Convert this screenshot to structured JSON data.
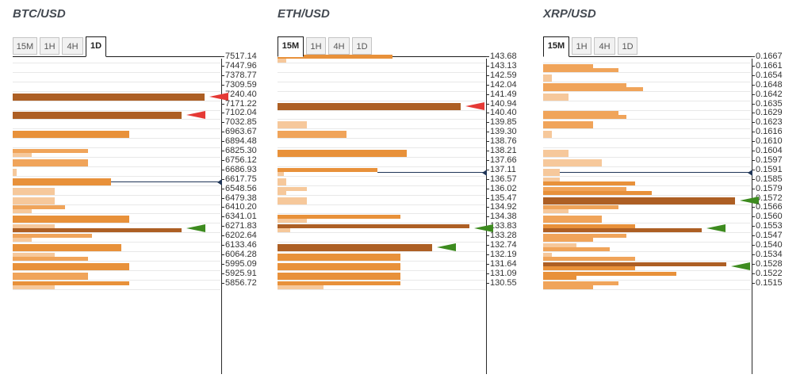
{
  "colors": {
    "bar_light": "#f6c89b",
    "bar_medium": "#f0a45a",
    "bar_orange": "#e8913a",
    "bar_dark": "#ad5f24",
    "arrow_resistance": "#e53935",
    "arrow_support": "#3d8b1f",
    "current_price_line": "#1f3557"
  },
  "panels": [
    {
      "title": "BTC/USD",
      "tabs": [
        {
          "label": "15M",
          "active": false
        },
        {
          "label": "1H",
          "active": false
        },
        {
          "label": "4H",
          "active": false
        },
        {
          "label": "1D",
          "active": true
        }
      ],
      "levels": [
        {
          "price": "7517.14",
          "bars": [],
          "arrow": null
        },
        {
          "price": "7447.96",
          "bars": [],
          "arrow": null
        },
        {
          "price": "7378.77",
          "bars": [],
          "arrow": null
        },
        {
          "price": "7309.59",
          "bars": [],
          "arrow": null
        },
        {
          "price": "7240.40",
          "bars": [
            {
              "level": 4,
              "strength": 0.92
            }
          ],
          "arrow": "red"
        },
        {
          "price": "7171.22",
          "bars": [],
          "arrow": null
        },
        {
          "price": "7102.04",
          "bars": [
            {
              "level": 4,
              "strength": 0.81
            }
          ],
          "arrow": "red"
        },
        {
          "price": "7032.85",
          "bars": [],
          "arrow": null
        },
        {
          "price": "6963.67",
          "bars": [
            {
              "level": 3,
              "strength": 0.56
            }
          ],
          "arrow": null
        },
        {
          "price": "6894.48",
          "bars": [],
          "arrow": null
        },
        {
          "price": "6825.30",
          "bars": [
            {
              "level": 2,
              "strength": 0.36
            },
            {
              "level": 1,
              "strength": 0.09
            }
          ],
          "arrow": null
        },
        {
          "price": "6756.12",
          "bars": [
            {
              "level": 2,
              "strength": 0.36
            }
          ],
          "arrow": null
        },
        {
          "price": "6686.93",
          "bars": [
            {
              "level": 1,
              "strength": 0.02
            }
          ],
          "arrow": null
        },
        {
          "price": "6617.75",
          "bars": [
            {
              "level": 3,
              "strength": 0.47
            }
          ],
          "arrow": null,
          "current": true
        },
        {
          "price": "6548.56",
          "bars": [
            {
              "level": 1,
              "strength": 0.2
            }
          ],
          "arrow": null
        },
        {
          "price": "6479.38",
          "bars": [
            {
              "level": 1,
              "strength": 0.2
            }
          ],
          "arrow": null
        },
        {
          "price": "6410.20",
          "bars": [
            {
              "level": 2,
              "strength": 0.25
            },
            {
              "level": 1,
              "strength": 0.09
            }
          ],
          "arrow": null
        },
        {
          "price": "6341.01",
          "bars": [
            {
              "level": 3,
              "strength": 0.56
            }
          ],
          "arrow": null
        },
        {
          "price": "6271.83",
          "bars": [
            {
              "level": 1,
              "strength": 0.2
            },
            {
              "level": 4,
              "strength": 0.81
            }
          ],
          "arrow": "green"
        },
        {
          "price": "6202.64",
          "bars": [
            {
              "level": 2,
              "strength": 0.38
            },
            {
              "level": 1,
              "strength": 0.09
            }
          ],
          "arrow": null
        },
        {
          "price": "6133.46",
          "bars": [
            {
              "level": 3,
              "strength": 0.52
            }
          ],
          "arrow": null
        },
        {
          "price": "6064.28",
          "bars": [
            {
              "level": 1,
              "strength": 0.2
            },
            {
              "level": 2,
              "strength": 0.36
            }
          ],
          "arrow": null
        },
        {
          "price": "5995.09",
          "bars": [
            {
              "level": 3,
              "strength": 0.56
            }
          ],
          "arrow": null
        },
        {
          "price": "5925.91",
          "bars": [
            {
              "level": 2,
              "strength": 0.36
            }
          ],
          "arrow": null
        },
        {
          "price": "5856.72",
          "bars": [
            {
              "level": 3,
              "strength": 0.56
            },
            {
              "level": 1,
              "strength": 0.2
            }
          ],
          "arrow": null
        }
      ]
    },
    {
      "title": "ETH/USD",
      "tabs": [
        {
          "label": "15M",
          "active": true
        },
        {
          "label": "1H",
          "active": false
        },
        {
          "label": "4H",
          "active": false
        },
        {
          "label": "1D",
          "active": false
        }
      ],
      "levels": [
        {
          "price": "143.68",
          "bars": [
            {
              "level": 3,
              "strength": 0.55
            },
            {
              "level": 1,
              "strength": 0.04
            }
          ],
          "arrow": null
        },
        {
          "price": "143.13",
          "bars": [],
          "arrow": null
        },
        {
          "price": "142.59",
          "bars": [],
          "arrow": null
        },
        {
          "price": "142.04",
          "bars": [],
          "arrow": null
        },
        {
          "price": "141.49",
          "bars": [],
          "arrow": null
        },
        {
          "price": "140.94",
          "bars": [
            {
              "level": 4,
              "strength": 0.88
            }
          ],
          "arrow": "red"
        },
        {
          "price": "140.40",
          "bars": [],
          "arrow": null
        },
        {
          "price": "139.85",
          "bars": [
            {
              "level": 1,
              "strength": 0.14
            }
          ],
          "arrow": null
        },
        {
          "price": "139.30",
          "bars": [
            {
              "level": 2,
              "strength": 0.33
            }
          ],
          "arrow": null
        },
        {
          "price": "138.76",
          "bars": [],
          "arrow": null
        },
        {
          "price": "138.21",
          "bars": [
            {
              "level": 3,
              "strength": 0.62
            }
          ],
          "arrow": null
        },
        {
          "price": "137.66",
          "bars": [],
          "arrow": null
        },
        {
          "price": "137.11",
          "bars": [
            {
              "level": 3,
              "strength": 0.48
            },
            {
              "level": 1,
              "strength": 0.03
            }
          ],
          "arrow": null,
          "current": true
        },
        {
          "price": "136.57",
          "bars": [
            {
              "level": 1,
              "strength": 0.04
            }
          ],
          "arrow": null
        },
        {
          "price": "136.02",
          "bars": [
            {
              "level": 1,
              "strength": 0.14
            },
            {
              "level": 1,
              "strength": 0.04
            }
          ],
          "arrow": null
        },
        {
          "price": "135.47",
          "bars": [
            {
              "level": 1,
              "strength": 0.14
            }
          ],
          "arrow": null
        },
        {
          "price": "134.92",
          "bars": [],
          "arrow": null
        },
        {
          "price": "134.38",
          "bars": [
            {
              "level": 3,
              "strength": 0.59
            },
            {
              "level": 1,
              "strength": 0.14
            }
          ],
          "arrow": null
        },
        {
          "price": "133.83",
          "bars": [
            {
              "level": 4,
              "strength": 0.92
            },
            {
              "level": 1,
              "strength": 0.06
            }
          ],
          "arrow": "green"
        },
        {
          "price": "133.28",
          "bars": [],
          "arrow": null
        },
        {
          "price": "132.74",
          "bars": [
            {
              "level": 4,
              "strength": 0.74
            }
          ],
          "arrow": "green"
        },
        {
          "price": "132.19",
          "bars": [
            {
              "level": 3,
              "strength": 0.59
            }
          ],
          "arrow": null
        },
        {
          "price": "131.64",
          "bars": [
            {
              "level": 3,
              "strength": 0.59
            }
          ],
          "arrow": null
        },
        {
          "price": "131.09",
          "bars": [
            {
              "level": 3,
              "strength": 0.59
            }
          ],
          "arrow": null
        },
        {
          "price": "130.55",
          "bars": [
            {
              "level": 3,
              "strength": 0.59
            },
            {
              "level": 1,
              "strength": 0.22
            }
          ],
          "arrow": null
        }
      ]
    },
    {
      "title": "XRP/USD",
      "tabs": [
        {
          "label": "15M",
          "active": true
        },
        {
          "label": "1H",
          "active": false
        },
        {
          "label": "4H",
          "active": false
        },
        {
          "label": "1D",
          "active": false
        }
      ],
      "levels": [
        {
          "price": "0.1667",
          "bars": [],
          "arrow": null
        },
        {
          "price": "0.1661",
          "bars": [
            {
              "level": 2,
              "strength": 0.24
            },
            {
              "level": 2,
              "strength": 0.36
            }
          ],
          "arrow": null
        },
        {
          "price": "0.1654",
          "bars": [
            {
              "level": 1,
              "strength": 0.04
            }
          ],
          "arrow": null
        },
        {
          "price": "0.1648",
          "bars": [
            {
              "level": 2,
              "strength": 0.4
            },
            {
              "level": 2,
              "strength": 0.48
            }
          ],
          "arrow": null
        },
        {
          "price": "0.1642",
          "bars": [
            {
              "level": 1,
              "strength": 0.12
            }
          ],
          "arrow": null
        },
        {
          "price": "0.1635",
          "bars": [],
          "arrow": null
        },
        {
          "price": "0.1629",
          "bars": [
            {
              "level": 2,
              "strength": 0.36
            },
            {
              "level": 2,
              "strength": 0.4
            }
          ],
          "arrow": null
        },
        {
          "price": "0.1623",
          "bars": [
            {
              "level": 2,
              "strength": 0.24
            }
          ],
          "arrow": null
        },
        {
          "price": "0.1616",
          "bars": [
            {
              "level": 1,
              "strength": 0.04
            }
          ],
          "arrow": null
        },
        {
          "price": "0.1610",
          "bars": [],
          "arrow": null
        },
        {
          "price": "0.1604",
          "bars": [
            {
              "level": 1,
              "strength": 0.12
            }
          ],
          "arrow": null
        },
        {
          "price": "0.1597",
          "bars": [
            {
              "level": 1,
              "strength": 0.28
            }
          ],
          "arrow": null
        },
        {
          "price": "0.1591",
          "bars": [
            {
              "level": 1,
              "strength": 0.08
            }
          ],
          "arrow": null,
          "current": true
        },
        {
          "price": "0.1585",
          "bars": [
            {
              "level": 1,
              "strength": 0.08
            },
            {
              "level": 3,
              "strength": 0.44
            }
          ],
          "arrow": null
        },
        {
          "price": "0.1579",
          "bars": [
            {
              "level": 2,
              "strength": 0.4
            },
            {
              "level": 3,
              "strength": 0.52
            }
          ],
          "arrow": null
        },
        {
          "price": "0.1572",
          "bars": [
            {
              "level": 4,
              "strength": 0.92
            }
          ],
          "arrow": "green"
        },
        {
          "price": "0.1566",
          "bars": [
            {
              "level": 2,
              "strength": 0.36
            },
            {
              "level": 1,
              "strength": 0.12
            }
          ],
          "arrow": null
        },
        {
          "price": "0.1560",
          "bars": [
            {
              "level": 2,
              "strength": 0.28
            }
          ],
          "arrow": null
        },
        {
          "price": "0.1553",
          "bars": [
            {
              "level": 3,
              "strength": 0.44
            },
            {
              "level": 4,
              "strength": 0.76
            }
          ],
          "arrow": "green"
        },
        {
          "price": "0.1547",
          "bars": [
            {
              "level": 2,
              "strength": 0.4
            },
            {
              "level": 2,
              "strength": 0.24
            }
          ],
          "arrow": null
        },
        {
          "price": "0.1540",
          "bars": [
            {
              "level": 1,
              "strength": 0.16
            },
            {
              "level": 2,
              "strength": 0.32
            }
          ],
          "arrow": null
        },
        {
          "price": "0.1534",
          "bars": [
            {
              "level": 1,
              "strength": 0.04
            },
            {
              "level": 2,
              "strength": 0.44
            }
          ],
          "arrow": null
        },
        {
          "price": "0.1528",
          "bars": [
            {
              "level": 4,
              "strength": 0.88
            },
            {
              "level": 3,
              "strength": 0.44
            }
          ],
          "arrow": "green"
        },
        {
          "price": "0.1522",
          "bars": [
            {
              "level": 3,
              "strength": 0.64
            },
            {
              "level": 3,
              "strength": 0.16
            }
          ],
          "arrow": null
        },
        {
          "price": "0.1515",
          "bars": [
            {
              "level": 2,
              "strength": 0.36
            },
            {
              "level": 2,
              "strength": 0.24
            }
          ],
          "arrow": null
        }
      ]
    }
  ]
}
